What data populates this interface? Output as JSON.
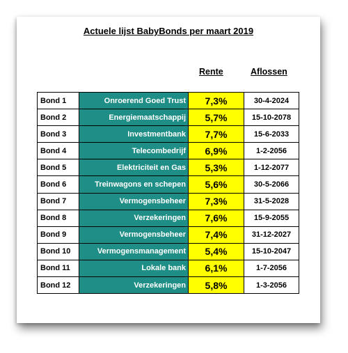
{
  "title": "Actuele lijst BabyBonds per  maart 2019",
  "headers": {
    "rate": "Rente",
    "repay": "Aflossen"
  },
  "bonds": [
    {
      "name": "Bond 1",
      "sector": "Onroerend Goed Trust",
      "rate": "7,3%",
      "date": "30-4-2024"
    },
    {
      "name": "Bond 2",
      "sector": "Energiemaatschappij",
      "rate": "5,7%",
      "date": "15-10-2078"
    },
    {
      "name": "Bond 3",
      "sector": "Investmentbank",
      "rate": "7,7%",
      "date": "15-6-2033"
    },
    {
      "name": "Bond 4",
      "sector": "Telecombedrijf",
      "rate": "6,9%",
      "date": "1-2-2056"
    },
    {
      "name": "Bond 5",
      "sector": "Elektriciteit en Gas",
      "rate": "5,3%",
      "date": "1-12-2077"
    },
    {
      "name": "Bond 6",
      "sector": "Treinwagons en schepen",
      "rate": "5,6%",
      "date": "30-5-2066"
    },
    {
      "name": "Bond 7",
      "sector": "Vermogensbeheer",
      "rate": "7,3%",
      "date": "31-5-2028"
    },
    {
      "name": "Bond 8",
      "sector": "Verzekeringen",
      "rate": "7,6%",
      "date": "15-9-2055"
    },
    {
      "name": "Bond 9",
      "sector": "Vermogensbeheer",
      "rate": "7,4%",
      "date": "31-12-2027"
    },
    {
      "name": "Bond 10",
      "sector": "Vermogensmanagement",
      "rate": "5,4%",
      "date": "15-10-2047"
    },
    {
      "name": "Bond 11",
      "sector": "Lokale bank",
      "rate": "6,1%",
      "date": "1-7-2056"
    },
    {
      "name": "Bond 12",
      "sector": "Verzekeringen",
      "rate": "5,8%",
      "date": "1-3-2056"
    }
  ],
  "colors": {
    "sector_bg": "#1f8e86",
    "rate_bg": "#ffff00"
  }
}
